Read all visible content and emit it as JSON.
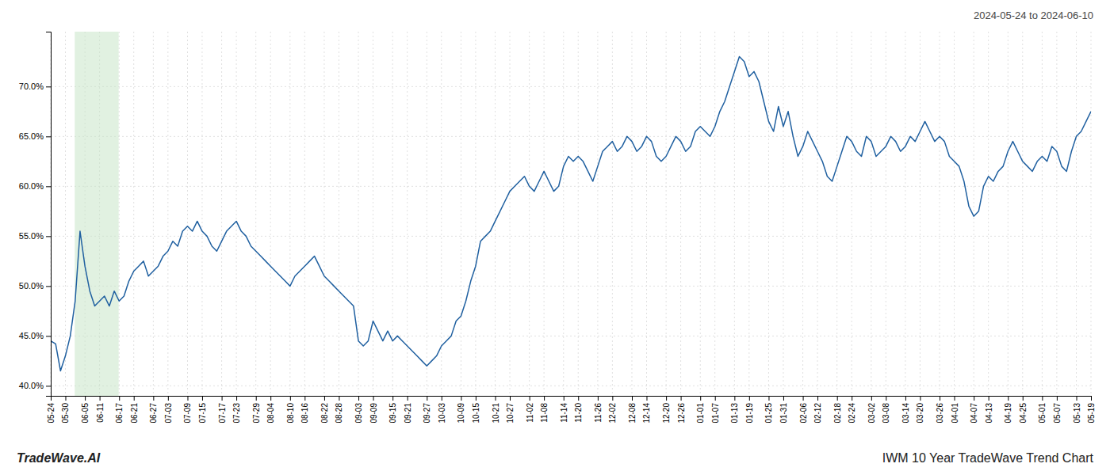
{
  "chart_data": {
    "type": "line",
    "title": "IWM 10 Year TradeWave Trend Chart",
    "subtitle": "2024-05-24 to 2024-06-10",
    "annotations": [
      "TradeWave.AI"
    ],
    "color": "#2060a0",
    "grid": true,
    "ylim": [
      39.0,
      75.5
    ],
    "yticks": [
      {
        "value": 40.0,
        "label": "40.0%"
      },
      {
        "value": 45.0,
        "label": "45.0%"
      },
      {
        "value": 50.0,
        "label": "50.0%"
      },
      {
        "value": 55.0,
        "label": "55.0%"
      },
      {
        "value": 60.0,
        "label": "60.0%"
      },
      {
        "value": 65.0,
        "label": "65.0%"
      },
      {
        "value": 70.0,
        "label": "70.0%"
      }
    ],
    "highlight": {
      "start": 4.922,
      "end": 13.91,
      "color": "#c8e6c8"
    },
    "categories": [
      "05-24",
      null,
      null,
      "05-30",
      null,
      null,
      null,
      "06-05",
      null,
      null,
      "06-11",
      null,
      null,
      null,
      "06-17",
      null,
      null,
      "06-21",
      null,
      null,
      null,
      "06-27",
      null,
      null,
      "07-03",
      null,
      null,
      null,
      "07-09",
      null,
      null,
      "07-15",
      null,
      null,
      null,
      "07-17",
      null,
      null,
      "07-23",
      null,
      null,
      null,
      "07-29",
      null,
      null,
      "08-04",
      null,
      null,
      null,
      "08-10",
      null,
      null,
      "08-16",
      null,
      null,
      null,
      "08-22",
      null,
      null,
      "08-28",
      null,
      null,
      null,
      "09-03",
      null,
      null,
      "09-09",
      null,
      null,
      null,
      "09-15",
      null,
      null,
      "09-21",
      null,
      null,
      null,
      "09-27",
      null,
      null,
      "10-03",
      null,
      null,
      null,
      "10-09",
      null,
      null,
      "10-15",
      null,
      null,
      null,
      "10-21",
      null,
      null,
      "10-27",
      null,
      null,
      null,
      "11-02",
      null,
      null,
      "11-08",
      null,
      null,
      null,
      "11-14",
      null,
      null,
      "11-20",
      null,
      null,
      null,
      "11-26",
      null,
      null,
      "12-02",
      null,
      null,
      null,
      "12-08",
      null,
      null,
      "12-14",
      null,
      null,
      null,
      "12-20",
      null,
      null,
      "12-26",
      null,
      null,
      null,
      "01-01",
      null,
      null,
      "01-07",
      null,
      null,
      null,
      "01-13",
      null,
      null,
      "01-19",
      null,
      null,
      null,
      "01-25",
      null,
      null,
      "01-31",
      null,
      null,
      null,
      "02-06",
      null,
      null,
      "02-12",
      null,
      null,
      null,
      "02-18",
      null,
      null,
      "02-24",
      null,
      null,
      null,
      "03-02",
      null,
      null,
      "03-08",
      null,
      null,
      null,
      "03-14",
      null,
      null,
      "03-20",
      null,
      null,
      null,
      "03-26",
      null,
      null,
      "04-01",
      null,
      null,
      null,
      "04-07",
      null,
      null,
      "04-13",
      null,
      null,
      null,
      "04-19",
      null,
      null,
      "04-25",
      null,
      null,
      null,
      "05-01",
      null,
      null,
      "05-07",
      null,
      null,
      null,
      "05-13",
      null,
      null,
      "05-19"
    ],
    "values": [
      44.5,
      44.2,
      41.5,
      43.0,
      45.0,
      48.5,
      55.5,
      52.0,
      49.5,
      48.0,
      48.5,
      49.0,
      48.0,
      49.5,
      48.5,
      49.0,
      50.5,
      51.5,
      52.0,
      52.5,
      51.0,
      51.5,
      52.0,
      53.0,
      53.5,
      54.5,
      54.0,
      55.5,
      56.0,
      55.5,
      56.5,
      55.5,
      55.0,
      54.0,
      53.5,
      54.5,
      55.5,
      56.0,
      56.5,
      55.5,
      55.0,
      54.0,
      53.5,
      53.0,
      52.5,
      52.0,
      51.5,
      51.0,
      50.5,
      50.0,
      51.0,
      51.5,
      52.0,
      52.5,
      53.0,
      52.0,
      51.0,
      50.5,
      50.0,
      49.5,
      49.0,
      48.5,
      48.0,
      44.5,
      44.0,
      44.5,
      46.5,
      45.5,
      44.5,
      45.5,
      44.5,
      45.0,
      44.5,
      44.0,
      43.5,
      43.0,
      42.5,
      42.0,
      42.5,
      43.0,
      44.0,
      44.5,
      45.0,
      46.5,
      47.0,
      48.5,
      50.5,
      52.0,
      54.5,
      55.0,
      55.5,
      56.5,
      57.5,
      58.5,
      59.5,
      60.0,
      60.5,
      61.0,
      60.0,
      59.5,
      60.5,
      61.5,
      60.5,
      59.5,
      60.0,
      62.0,
      63.0,
      62.5,
      63.0,
      62.5,
      61.5,
      60.5,
      62.0,
      63.5,
      64.0,
      64.5,
      63.5,
      64.0,
      65.0,
      64.5,
      63.5,
      64.0,
      65.0,
      64.5,
      63.0,
      62.5,
      63.0,
      64.0,
      65.0,
      64.5,
      63.5,
      64.0,
      65.5,
      66.0,
      65.5,
      65.0,
      66.0,
      67.5,
      68.5,
      70.0,
      71.5,
      73.0,
      72.5,
      71.0,
      71.5,
      70.5,
      68.5,
      66.5,
      65.5,
      68.0,
      66.0,
      67.5,
      65.0,
      63.0,
      64.0,
      65.5,
      64.5,
      63.5,
      62.5,
      61.0,
      60.5,
      62.0,
      63.5,
      65.0,
      64.5,
      63.5,
      63.0,
      65.0,
      64.5,
      63.0,
      63.5,
      64.0,
      65.0,
      64.5,
      63.5,
      64.0,
      65.0,
      64.5,
      65.5,
      66.5,
      65.5,
      64.5,
      65.0,
      64.5,
      63.0,
      62.5,
      62.0,
      60.5,
      58.0,
      57.0,
      57.5,
      60.0,
      61.0,
      60.5,
      61.5,
      62.0,
      63.5,
      64.5,
      63.5,
      62.5,
      62.0,
      61.5,
      62.5,
      63.0,
      62.5,
      64.0,
      63.5,
      62.0,
      61.5,
      63.5,
      65.0,
      65.5,
      66.5,
      67.5
    ]
  }
}
